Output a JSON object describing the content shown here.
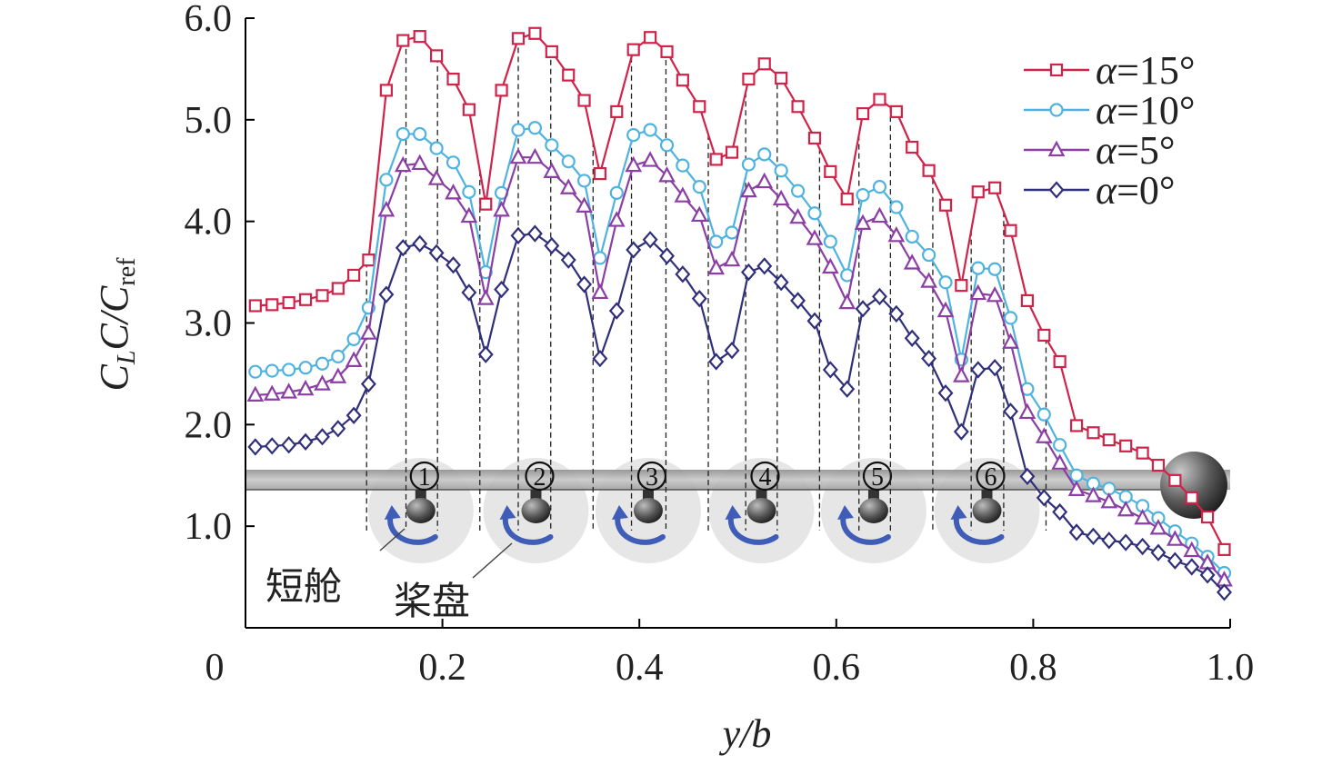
{
  "chart_data": {
    "type": "line",
    "xlabel": "y/b",
    "ylabel_parts": [
      "C",
      "L",
      "C/C",
      "ref"
    ],
    "xlim": [
      0,
      1.0
    ],
    "ylim": [
      0.0,
      6.0
    ],
    "xticks": [
      {
        "v": 0.2,
        "label": "0.2"
      },
      {
        "v": 0.4,
        "label": "0.4"
      },
      {
        "v": 0.6,
        "label": "0.6"
      },
      {
        "v": 0.8,
        "label": "0.8"
      },
      {
        "v": 1.0,
        "label": "1.0"
      }
    ],
    "x_origin_label": "0",
    "yticks": [
      {
        "v": 1.0,
        "label": "1.0"
      },
      {
        "v": 2.0,
        "label": "2.0"
      },
      {
        "v": 3.0,
        "label": "3.0"
      },
      {
        "v": 4.0,
        "label": "4.0"
      },
      {
        "v": 5.0,
        "label": "5.0"
      },
      {
        "v": 6.0,
        "label": "6.0"
      }
    ],
    "grid": false,
    "legend_position": "top-right",
    "series": [
      {
        "name": "α=15°",
        "color": "#d0234a",
        "marker": "square",
        "x": [
          0.01,
          0.027,
          0.044,
          0.061,
          0.078,
          0.094,
          0.11,
          0.125,
          0.143,
          0.16,
          0.177,
          0.194,
          0.211,
          0.227,
          0.244,
          0.26,
          0.277,
          0.294,
          0.311,
          0.328,
          0.344,
          0.36,
          0.377,
          0.394,
          0.411,
          0.428,
          0.444,
          0.461,
          0.478,
          0.494,
          0.511,
          0.527,
          0.544,
          0.561,
          0.578,
          0.594,
          0.611,
          0.627,
          0.644,
          0.661,
          0.677,
          0.694,
          0.711,
          0.727,
          0.744,
          0.761,
          0.777,
          0.794,
          0.811,
          0.827,
          0.844,
          0.861,
          0.877,
          0.894,
          0.911,
          0.927,
          0.944,
          0.961,
          0.977,
          0.994
        ],
        "y": [
          3.17,
          3.18,
          3.2,
          3.23,
          3.27,
          3.34,
          3.47,
          3.62,
          5.29,
          5.78,
          5.82,
          5.63,
          5.4,
          5.1,
          4.17,
          5.29,
          5.8,
          5.85,
          5.67,
          5.44,
          5.19,
          4.47,
          5.08,
          5.69,
          5.81,
          5.67,
          5.39,
          5.13,
          4.61,
          4.68,
          5.4,
          5.55,
          5.41,
          5.13,
          4.82,
          4.49,
          4.22,
          5.06,
          5.2,
          5.08,
          4.73,
          4.5,
          4.16,
          3.37,
          4.29,
          4.33,
          3.91,
          3.22,
          2.88,
          2.62,
          1.99,
          1.92,
          1.85,
          1.79,
          1.72,
          1.6,
          1.45,
          1.28,
          1.09,
          0.77
        ]
      },
      {
        "name": "α=10°",
        "color": "#4fb3e0",
        "marker": "circle",
        "x": [
          0.01,
          0.027,
          0.044,
          0.061,
          0.078,
          0.094,
          0.11,
          0.125,
          0.143,
          0.16,
          0.177,
          0.194,
          0.211,
          0.227,
          0.244,
          0.26,
          0.277,
          0.294,
          0.311,
          0.328,
          0.344,
          0.36,
          0.377,
          0.394,
          0.411,
          0.428,
          0.444,
          0.461,
          0.478,
          0.494,
          0.511,
          0.527,
          0.544,
          0.561,
          0.578,
          0.594,
          0.611,
          0.627,
          0.644,
          0.661,
          0.677,
          0.694,
          0.711,
          0.727,
          0.744,
          0.761,
          0.777,
          0.794,
          0.811,
          0.827,
          0.844,
          0.861,
          0.877,
          0.894,
          0.911,
          0.927,
          0.944,
          0.961,
          0.977,
          0.994
        ],
        "y": [
          2.52,
          2.53,
          2.54,
          2.56,
          2.6,
          2.67,
          2.84,
          3.15,
          4.41,
          4.86,
          4.86,
          4.72,
          4.58,
          4.29,
          3.5,
          4.28,
          4.9,
          4.92,
          4.75,
          4.59,
          4.4,
          3.64,
          4.28,
          4.85,
          4.9,
          4.75,
          4.55,
          4.34,
          3.8,
          3.89,
          4.56,
          4.66,
          4.5,
          4.3,
          4.08,
          3.8,
          3.47,
          4.26,
          4.34,
          4.14,
          3.85,
          3.67,
          3.4,
          2.64,
          3.54,
          3.53,
          3.05,
          2.35,
          2.1,
          1.8,
          1.5,
          1.42,
          1.37,
          1.29,
          1.2,
          1.08,
          0.95,
          0.83,
          0.7,
          0.54
        ]
      },
      {
        "name": "α=5°",
        "color": "#8b3ea4",
        "marker": "triangle",
        "x": [
          0.01,
          0.027,
          0.044,
          0.061,
          0.078,
          0.094,
          0.11,
          0.125,
          0.143,
          0.16,
          0.177,
          0.194,
          0.211,
          0.227,
          0.244,
          0.26,
          0.277,
          0.294,
          0.311,
          0.328,
          0.344,
          0.36,
          0.377,
          0.394,
          0.411,
          0.428,
          0.444,
          0.461,
          0.478,
          0.494,
          0.511,
          0.527,
          0.544,
          0.561,
          0.578,
          0.594,
          0.611,
          0.627,
          0.644,
          0.661,
          0.677,
          0.694,
          0.711,
          0.727,
          0.744,
          0.761,
          0.777,
          0.794,
          0.811,
          0.827,
          0.844,
          0.861,
          0.877,
          0.894,
          0.911,
          0.927,
          0.944,
          0.961,
          0.977,
          0.994
        ],
        "y": [
          2.29,
          2.3,
          2.32,
          2.35,
          2.4,
          2.47,
          2.63,
          2.9,
          4.11,
          4.55,
          4.57,
          4.42,
          4.28,
          4.05,
          3.24,
          4.11,
          4.63,
          4.63,
          4.49,
          4.33,
          4.15,
          3.3,
          4.01,
          4.55,
          4.6,
          4.45,
          4.25,
          4.06,
          3.54,
          3.62,
          4.3,
          4.39,
          4.22,
          4.04,
          3.83,
          3.55,
          3.2,
          3.98,
          4.05,
          3.86,
          3.59,
          3.41,
          3.12,
          2.48,
          3.29,
          3.27,
          2.81,
          2.12,
          1.88,
          1.62,
          1.36,
          1.3,
          1.24,
          1.16,
          1.08,
          0.98,
          0.87,
          0.76,
          0.64,
          0.47
        ]
      },
      {
        "name": "α=0°",
        "color": "#2f2f7a",
        "marker": "diamond",
        "x": [
          0.01,
          0.027,
          0.044,
          0.061,
          0.078,
          0.094,
          0.11,
          0.125,
          0.143,
          0.16,
          0.177,
          0.194,
          0.211,
          0.227,
          0.244,
          0.26,
          0.277,
          0.294,
          0.311,
          0.328,
          0.344,
          0.36,
          0.377,
          0.394,
          0.411,
          0.428,
          0.444,
          0.461,
          0.478,
          0.494,
          0.511,
          0.527,
          0.544,
          0.561,
          0.578,
          0.594,
          0.611,
          0.627,
          0.644,
          0.661,
          0.677,
          0.694,
          0.711,
          0.727,
          0.744,
          0.761,
          0.777,
          0.794,
          0.811,
          0.827,
          0.844,
          0.861,
          0.877,
          0.894,
          0.911,
          0.927,
          0.944,
          0.961,
          0.977,
          0.994
        ],
        "y": [
          1.78,
          1.79,
          1.8,
          1.83,
          1.88,
          1.96,
          2.09,
          2.4,
          3.28,
          3.74,
          3.78,
          3.69,
          3.57,
          3.3,
          2.69,
          3.33,
          3.86,
          3.88,
          3.76,
          3.62,
          3.38,
          2.65,
          3.12,
          3.72,
          3.82,
          3.66,
          3.48,
          3.24,
          2.62,
          2.73,
          3.5,
          3.56,
          3.4,
          3.22,
          3.02,
          2.54,
          2.35,
          3.14,
          3.26,
          3.09,
          2.85,
          2.65,
          2.31,
          1.93,
          2.54,
          2.56,
          2.13,
          1.49,
          1.28,
          1.14,
          0.94,
          0.9,
          0.86,
          0.84,
          0.8,
          0.74,
          0.66,
          0.6,
          0.52,
          0.35
        ]
      }
    ],
    "dashed_guides_x": [
      0.123,
      0.163,
      0.195,
      0.238,
      0.277,
      0.31,
      0.353,
      0.392,
      0.427,
      0.47,
      0.508,
      0.54,
      0.583,
      0.623,
      0.655,
      0.698,
      0.737,
      0.77,
      0.813
    ],
    "props": [
      {
        "label": "①",
        "x": 0.178
      },
      {
        "label": "②",
        "x": 0.295
      },
      {
        "label": "③",
        "x": 0.409
      },
      {
        "label": "④",
        "x": 0.524
      },
      {
        "label": "⑤",
        "x": 0.638
      },
      {
        "label": "⑥",
        "x": 0.753
      }
    ],
    "annotations": {
      "nacelle": "短舱",
      "propeller_disk": "桨盘"
    }
  }
}
